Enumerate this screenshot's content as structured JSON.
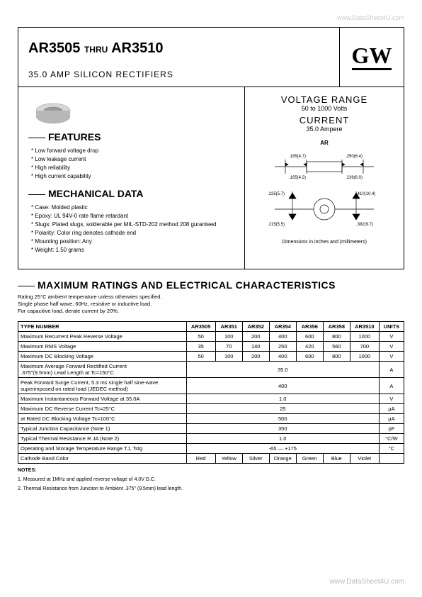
{
  "watermark_top": "www.DataSheet4U.com",
  "watermark_bottom": "www.DataSheet4U.com",
  "header": {
    "part_from": "AR3505",
    "thru": "THRU",
    "part_to": "AR3510",
    "logo": "GW",
    "subtitle": "35.0 AMP SILICON RECTIFIERS"
  },
  "voltage_range": {
    "head": "VOLTAGE RANGE",
    "sub": "50 to 1000 Volts",
    "cur_head": "CURRENT",
    "cur_sub": "35.0 Ampere"
  },
  "ar_label": "AR",
  "dims": {
    "d1": ".185(4.7)",
    "d2": ".165(4.2)",
    "d3": ".250(6.4)",
    "d4": ".236(6.0)",
    "d5": ".225(5.7)",
    "d6": ".215(5.5)",
    "d7": ".410(10.4)",
    "d8": ".382(9.7)",
    "note": "Dimensions in inches and (millimeters)"
  },
  "features": {
    "head": "FEATURES",
    "items": [
      "Low forward voltage drop",
      "Low leakage current",
      "High reliability",
      "High current capability"
    ]
  },
  "mechanical": {
    "head": "MECHANICAL DATA",
    "items": [
      "Case: Molded plastic",
      "Epoxy: UL 94V-0 rate flame retardant",
      "Slugs: Plated slugs, solderable per MIL-STD-202 method 208 guranteed",
      "Polarity: Color ring denotes cathode end",
      "Mounting position: Any",
      "Weight: 1.50 grams"
    ]
  },
  "max_head": "MAXIMUM RATINGS AND ELECTRICAL CHARACTERISTICS",
  "rating_desc": [
    "Rating 25°C ambient temperature unless otherwies specified.",
    "Single phase half wave, 60Hz, resistive or inductive load.",
    "For capacitive load, derate current by 20%."
  ],
  "table": {
    "headers": [
      "TYPE NUMBER",
      "AR3505",
      "AR351",
      "AR352",
      "AR354",
      "AR356",
      "AR358",
      "AR3510",
      "UNITS"
    ],
    "rows": [
      {
        "param": "Maximum Recurrent Peak Reverse Voltage",
        "vals": [
          "50",
          "100",
          "200",
          "400",
          "600",
          "800",
          "1000"
        ],
        "unit": "V"
      },
      {
        "param": "Maximum RMS Voltage",
        "vals": [
          "35",
          "70",
          "140",
          "250",
          "420",
          "560",
          "700"
        ],
        "unit": "V"
      },
      {
        "param": "Maximum DC Blocking Voltage",
        "vals": [
          "50",
          "100",
          "200",
          "400",
          "600",
          "800",
          "1000"
        ],
        "unit": "V"
      },
      {
        "param": "Maximum Average Forward Rectified Current\n.375\"(9.5mm) Lead Length at Tc=150°C",
        "span": "35.0",
        "unit": "A"
      },
      {
        "param": "Peak Forward Surge Current, 5.3 ms single half sine-wave\nsuperimposed on rated load (JEDEC method)",
        "span": "400",
        "unit": "A"
      },
      {
        "param": "Maximum Instantaneous Forward Voltage at 35.0A",
        "span": "1.0",
        "unit": "V"
      },
      {
        "param": "Maximum DC Reverse Current                    Tc=25°C",
        "span": "25",
        "unit": "μA"
      },
      {
        "param": "at Rated DC Blocking Voltage                   Tc=100°C",
        "span": "500",
        "unit": "μA"
      },
      {
        "param": "Typical Junction Capacitance (Note 1)",
        "span": "350",
        "unit": "pF"
      },
      {
        "param": "Typical Thermal Resistance R JA (Note 2)",
        "span": "1.0",
        "unit": "°C/W"
      },
      {
        "param": "Operating and Storage Temperature Range TJ, Tstg",
        "span": "-65 — +175",
        "unit": "°C"
      },
      {
        "param": "Cathode Band Color",
        "vals": [
          "Red",
          "Yellow",
          "Silver",
          "Orange",
          "Green",
          "Blue",
          "Violet"
        ],
        "unit": ""
      }
    ]
  },
  "notes": {
    "head": "NOTES:",
    "n1": "1. Measured at 1MHz and applied reverse voltage of 4.0V D.C.",
    "n2": "2. Thermal Resistance from Junction to Ambient .375\" (9.5mm) lead length."
  }
}
